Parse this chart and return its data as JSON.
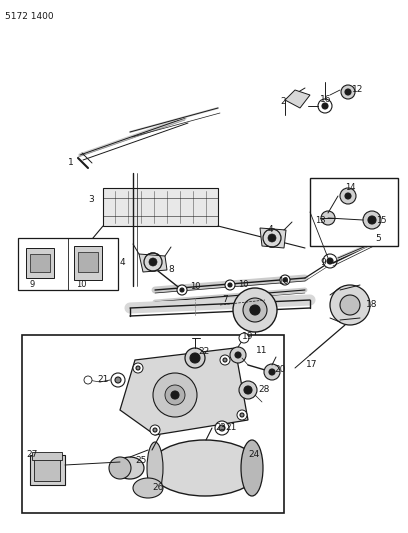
{
  "background_color": "#ffffff",
  "line_color": "#1a1a1a",
  "part_number": "5172 1400",
  "fig_width": 4.08,
  "fig_height": 5.33,
  "dpi": 100
}
